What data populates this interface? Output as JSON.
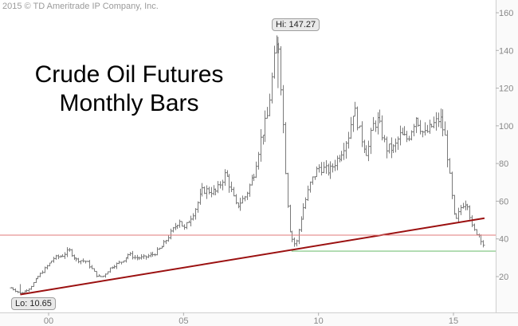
{
  "copyright": "2015 © TD Ameritrade IP Company, Inc.",
  "title_line1": "Crude Oil Futures",
  "title_line2": "Monthly Bars",
  "callouts": {
    "high": "Hi: 147.27",
    "low": "Lo: 10.65"
  },
  "colors": {
    "bars": "#7a7a7a",
    "uptrend_line": "#9b1010",
    "horizontal_line_red": "#e07a7a",
    "horizontal_line_green": "#79c27a",
    "axis_text": "#888888",
    "grid": "#f0f0f0"
  },
  "chart_data": {
    "type": "ohlc",
    "title": "Crude Oil Futures Monthly Bars",
    "xlabel": "",
    "ylabel": "",
    "x_range": [
      1998.6,
      2016.15
    ],
    "ylim": [
      2,
      162
    ],
    "y_ticks": [
      20,
      40,
      60,
      80,
      100,
      120,
      140,
      160
    ],
    "x_ticks": [
      {
        "label": "00",
        "year": 2000
      },
      {
        "label": "05",
        "year": 2005
      },
      {
        "label": "10",
        "year": 2010
      },
      {
        "label": "15",
        "year": 2015
      }
    ],
    "grid": false,
    "annotations": [
      {
        "text": "Hi: 147.27",
        "year": 2008.5,
        "value": 147.27
      },
      {
        "text": "Lo: 10.65",
        "year": 1998.95,
        "value": 10.65
      }
    ],
    "lines": [
      {
        "kind": "uptrend",
        "from": {
          "year": 1998.95,
          "value": 10.5
        },
        "to": {
          "year": 2016.15,
          "value": 51
        }
      },
      {
        "kind": "horizontal",
        "color": "red",
        "value": 42
      },
      {
        "kind": "horizontal",
        "color": "green",
        "value": 33.5,
        "from_year": 2009.0
      }
    ],
    "anchors": [
      [
        1998.6,
        14
      ],
      [
        1998.95,
        11
      ],
      [
        1999.3,
        14
      ],
      [
        1999.6,
        20
      ],
      [
        1999.9,
        25
      ],
      [
        2000.2,
        30
      ],
      [
        2000.5,
        31
      ],
      [
        2000.75,
        34
      ],
      [
        2001.0,
        29
      ],
      [
        2001.4,
        28
      ],
      [
        2001.8,
        20
      ],
      [
        2002.0,
        20
      ],
      [
        2002.3,
        25
      ],
      [
        2002.7,
        28
      ],
      [
        2002.95,
        32
      ],
      [
        2003.2,
        30
      ],
      [
        2003.5,
        30
      ],
      [
        2003.9,
        32
      ],
      [
        2004.2,
        36
      ],
      [
        2004.6,
        45
      ],
      [
        2004.85,
        50
      ],
      [
        2005.0,
        45
      ],
      [
        2005.4,
        55
      ],
      [
        2005.7,
        66
      ],
      [
        2006.2,
        65
      ],
      [
        2006.55,
        75
      ],
      [
        2006.95,
        57
      ],
      [
        2007.3,
        63
      ],
      [
        2007.6,
        75
      ],
      [
        2007.85,
        93
      ],
      [
        2008.1,
        105
      ],
      [
        2008.35,
        135
      ],
      [
        2008.5,
        147
      ],
      [
        2008.65,
        110
      ],
      [
        2008.8,
        67
      ],
      [
        2008.95,
        42
      ],
      [
        2009.15,
        36
      ],
      [
        2009.4,
        55
      ],
      [
        2009.7,
        70
      ],
      [
        2010.0,
        78
      ],
      [
        2010.4,
        76
      ],
      [
        2010.8,
        85
      ],
      [
        2011.1,
        95
      ],
      [
        2011.3,
        110
      ],
      [
        2011.55,
        95
      ],
      [
        2011.8,
        85
      ],
      [
        2012.0,
        100
      ],
      [
        2012.2,
        103
      ],
      [
        2012.5,
        88
      ],
      [
        2012.8,
        88
      ],
      [
        2013.0,
        95
      ],
      [
        2013.3,
        93
      ],
      [
        2013.6,
        105
      ],
      [
        2013.9,
        95
      ],
      [
        2014.2,
        100
      ],
      [
        2014.5,
        104
      ],
      [
        2014.7,
        93
      ],
      [
        2014.9,
        66
      ],
      [
        2015.05,
        48
      ],
      [
        2015.3,
        58
      ],
      [
        2015.5,
        60
      ],
      [
        2015.7,
        45
      ],
      [
        2015.95,
        42
      ],
      [
        2016.1,
        37
      ]
    ]
  }
}
